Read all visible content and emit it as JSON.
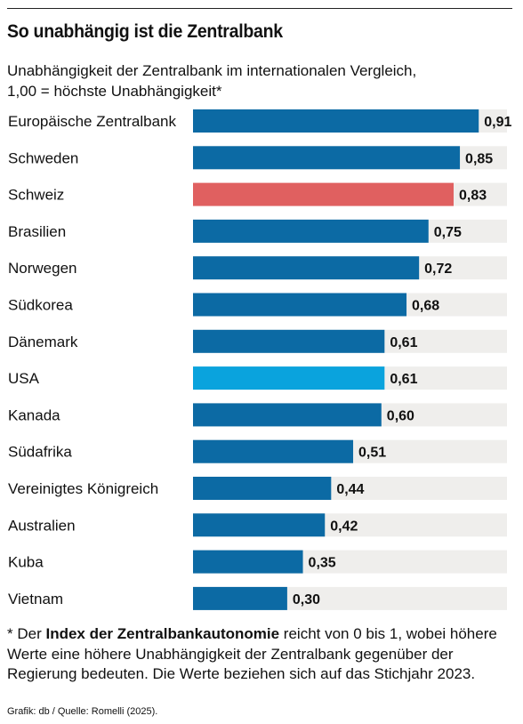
{
  "title": "So unabhängig ist die Zentralbank",
  "subtitle_line1": "Unabhängigkeit der Zentralbank im internationalen Vergleich,",
  "subtitle_line2": "1,00 = höchste Unabhängigkeit*",
  "footnote": {
    "prefix": "* Der ",
    "bold": "Index der Zentralbankautonomie",
    "suffix": " reicht von 0 bis 1, wobei höhere Werte eine höhere Unabhängigkeit der Zentralbank gegenüber der Regierung bedeuten. Die Werte beziehen sich auf das Stichjahr 2023."
  },
  "source": "Grafik: db / Quelle: Romelli (2025).",
  "colors": {
    "bar_default": "#0c6aa4",
    "bar_highlight_switzerland": "#e06060",
    "bar_highlight_usa": "#0aa3dd",
    "track": "#efeeec"
  },
  "chart_data": {
    "type": "bar",
    "orientation": "horizontal",
    "xlim": [
      0,
      1
    ],
    "categories": [
      "Europäische Zentralbank",
      "Schweden",
      "Schweiz",
      "Brasilien",
      "Norwegen",
      "Südkorea",
      "Dänemark",
      "USA",
      "Kanada",
      "Südafrika",
      "Vereinigtes Königreich",
      "Australien",
      "Kuba",
      "Vietnam"
    ],
    "values": [
      0.91,
      0.85,
      0.83,
      0.75,
      0.72,
      0.68,
      0.61,
      0.61,
      0.6,
      0.51,
      0.44,
      0.42,
      0.35,
      0.3
    ],
    "value_labels": [
      "0,91",
      "0,85",
      "0,83",
      "0,75",
      "0,72",
      "0,68",
      "0,61",
      "0,61",
      "0,60",
      "0,51",
      "0,44",
      "0,42",
      "0,35",
      "0,30"
    ],
    "bar_colors": [
      "#0c6aa4",
      "#0c6aa4",
      "#e06060",
      "#0c6aa4",
      "#0c6aa4",
      "#0c6aa4",
      "#0c6aa4",
      "#0aa3dd",
      "#0c6aa4",
      "#0c6aa4",
      "#0c6aa4",
      "#0c6aa4",
      "#0c6aa4",
      "#0c6aa4"
    ],
    "grid": false,
    "legend": "none"
  }
}
